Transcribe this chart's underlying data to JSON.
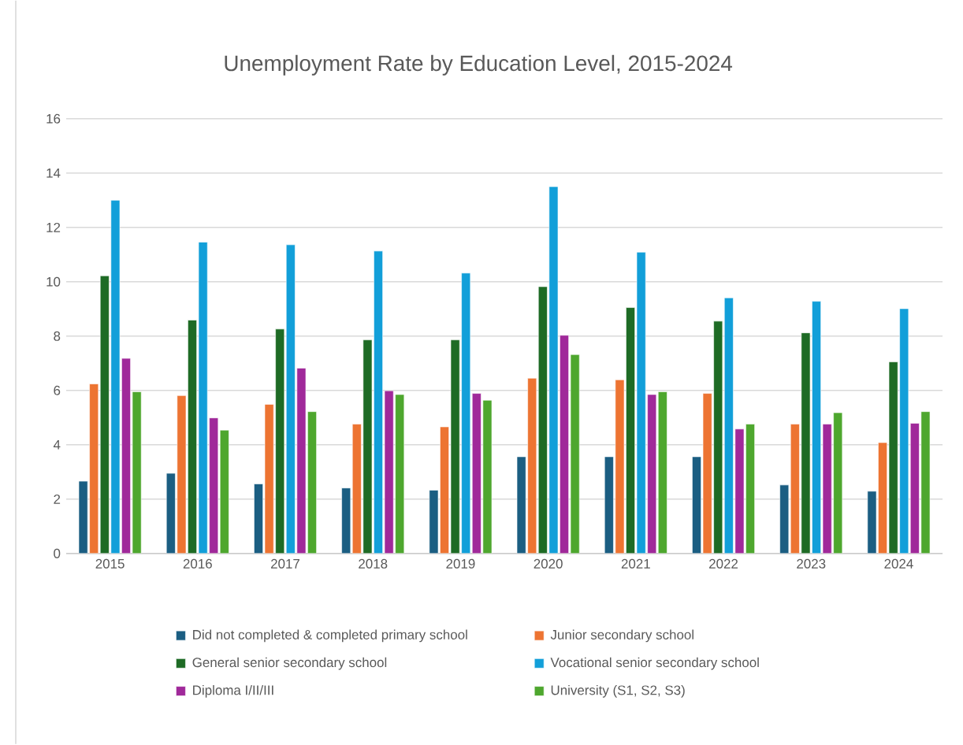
{
  "chart_data": {
    "type": "bar",
    "title": "Unemployment Rate by Education Level, 2015-2024",
    "categories": [
      "2015",
      "2016",
      "2017",
      "2018",
      "2019",
      "2020",
      "2021",
      "2022",
      "2023",
      "2024"
    ],
    "series": [
      {
        "name": "Did not completed & completed primary school",
        "color": "#1b5e82",
        "values": [
          2.66,
          2.95,
          2.56,
          2.41,
          2.33,
          3.56,
          3.56,
          3.56,
          2.52,
          2.29
        ]
      },
      {
        "name": "Junior secondary school",
        "color": "#ed7432",
        "values": [
          6.24,
          5.81,
          5.49,
          4.76,
          4.66,
          6.45,
          6.39,
          5.89,
          4.76,
          4.08
        ]
      },
      {
        "name": "General senior secondary school",
        "color": "#1e6b25",
        "values": [
          10.22,
          8.59,
          8.26,
          7.86,
          7.86,
          9.82,
          9.05,
          8.55,
          8.12,
          7.05
        ]
      },
      {
        "name": "Vocational senior secondary school",
        "color": "#129fd9",
        "values": [
          13.0,
          11.46,
          11.36,
          11.13,
          10.32,
          13.5,
          11.09,
          9.41,
          9.28,
          9.01
        ]
      },
      {
        "name": "Diploma I/II/III",
        "color": "#a0299a",
        "values": [
          7.18,
          4.99,
          6.82,
          5.99,
          5.89,
          8.03,
          5.85,
          4.58,
          4.76,
          4.79
        ]
      },
      {
        "name": "University (S1, S2, S3)",
        "color": "#4ea72e",
        "values": [
          5.95,
          4.54,
          5.22,
          5.85,
          5.64,
          7.32,
          5.95,
          4.76,
          5.18,
          5.22
        ]
      }
    ],
    "ylim": [
      0,
      16
    ],
    "yticks": [
      0,
      2,
      4,
      6,
      8,
      10,
      12,
      14,
      16
    ],
    "grid": "y",
    "legend": "bottom"
  }
}
